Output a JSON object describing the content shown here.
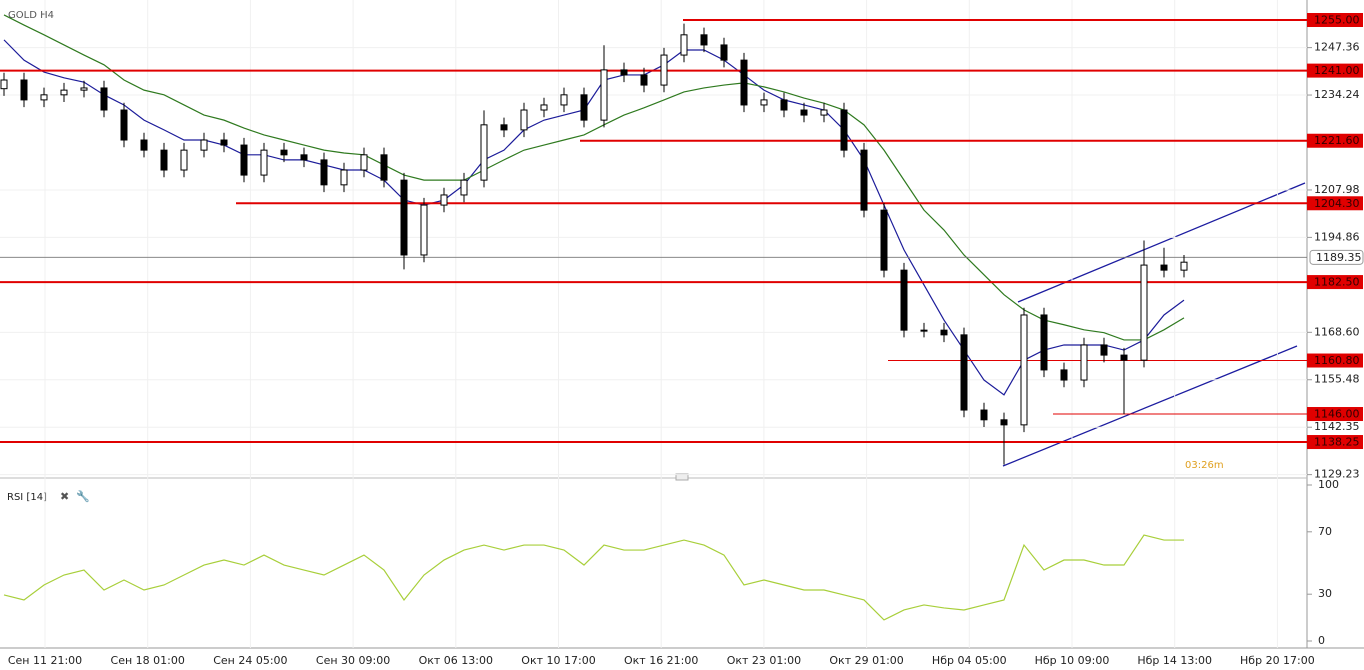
{
  "chart_data": [
    {
      "type": "candlestick",
      "title": "GOLD H4",
      "open": [
        1236,
        1238.4,
        1232.9,
        1234.3,
        1235.6,
        1236.2,
        1230.1,
        1221.8,
        1219,
        1213.5,
        1219,
        1221.8,
        1220.4,
        1212.1,
        1219,
        1217.7,
        1216.3,
        1209.4,
        1213.5,
        1217.7,
        1210.7,
        1190,
        1203.8,
        1206.6,
        1210.7,
        1226,
        1224.6,
        1230.1,
        1231.5,
        1234.3,
        1227.3,
        1241.2,
        1239.8,
        1237,
        1245.3,
        1250.9,
        1248.1,
        1243.9,
        1231.5,
        1232.9,
        1230.1,
        1228.7,
        1230.1,
        1219,
        1202.4,
        1185.8,
        1169.2,
        1169.2,
        1167.9,
        1147.1,
        1144.4,
        1143,
        1173.4,
        1158.2,
        1155.4,
        1165.1,
        1162.3,
        1160.9,
        1187.2,
        1185.8
      ],
      "high": [
        1240.4,
        1240.4,
        1236.3,
        1237.6,
        1238.2,
        1238.2,
        1232.1,
        1223.8,
        1221,
        1221,
        1223.8,
        1223.8,
        1222.4,
        1221,
        1221,
        1219.7,
        1218.3,
        1215.5,
        1219.7,
        1219.7,
        1212.7,
        1205.8,
        1208.6,
        1212.7,
        1230,
        1228,
        1232.1,
        1233.5,
        1236.3,
        1236.3,
        1248,
        1243.2,
        1241.8,
        1247.3,
        1254,
        1252.9,
        1250.1,
        1245.9,
        1234.9,
        1234.9,
        1232.1,
        1232.1,
        1232.1,
        1221,
        1204.4,
        1187.8,
        1171.2,
        1171.2,
        1169.9,
        1149.1,
        1146.4,
        1175.4,
        1175.4,
        1160.2,
        1167.1,
        1167.1,
        1164.3,
        1194,
        1192,
        1190
      ],
      "low": [
        1234,
        1230.9,
        1230.9,
        1232.3,
        1233.6,
        1228.1,
        1219.8,
        1217,
        1211.5,
        1211.5,
        1217,
        1218.4,
        1210.1,
        1210.1,
        1215.7,
        1214.3,
        1207.4,
        1207.4,
        1211.5,
        1208.7,
        1186,
        1188,
        1201.8,
        1204.6,
        1208.7,
        1222.6,
        1222.6,
        1228.1,
        1229.5,
        1225.3,
        1225.3,
        1237.8,
        1235,
        1235,
        1243.3,
        1246.1,
        1241.9,
        1229.5,
        1229.5,
        1228.1,
        1226.7,
        1226.7,
        1217,
        1200.4,
        1183.8,
        1167.2,
        1167.2,
        1165.9,
        1145.1,
        1142.4,
        1132,
        1141,
        1156.2,
        1153.4,
        1153.4,
        1160.3,
        1146,
        1158.9,
        1183.8,
        1183.8
      ],
      "close": [
        1238.4,
        1232.9,
        1234.3,
        1235.6,
        1236.2,
        1230.1,
        1221.8,
        1219,
        1213.5,
        1219,
        1221.8,
        1220.4,
        1212.1,
        1219,
        1217.7,
        1216.3,
        1209.4,
        1213.5,
        1217.7,
        1210.7,
        1190,
        1203.8,
        1206.6,
        1210.7,
        1226,
        1224.6,
        1230.1,
        1231.5,
        1234.3,
        1227.3,
        1241.2,
        1239.8,
        1237,
        1245.3,
        1250.9,
        1248.1,
        1243.9,
        1231.5,
        1232.9,
        1230.1,
        1228.7,
        1230.1,
        1219,
        1202.4,
        1185.8,
        1169.2,
        1169.2,
        1167.9,
        1147.1,
        1144.4,
        1143,
        1173.4,
        1158.2,
        1155.4,
        1165.1,
        1162.3,
        1160.9,
        1187.2,
        1185.8,
        1188
      ],
      "lines": [
        {
          "color": "#1c1c9a",
          "values": [
            1249.5,
            1243.9,
            1240.6,
            1239,
            1237.8,
            1234.3,
            1231.5,
            1227.3,
            1224.6,
            1221.8,
            1221.8,
            1220.4,
            1217.7,
            1217.7,
            1216.3,
            1216.3,
            1214.9,
            1213.5,
            1213.5,
            1210.7,
            1205.2,
            1203.8,
            1205.2,
            1209.4,
            1216.3,
            1219,
            1224.6,
            1227.3,
            1228.7,
            1230.1,
            1238.4,
            1239.8,
            1239.8,
            1242.6,
            1246.7,
            1246.7,
            1243.9,
            1239.8,
            1235.6,
            1232.9,
            1231.5,
            1230.1,
            1224.6,
            1216.3,
            1203.8,
            1191.4,
            1181.7,
            1172,
            1163.7,
            1155.4,
            1151.3,
            1160.9,
            1163.7,
            1165.1,
            1165.1,
            1165.1,
            1163.7,
            1166.5,
            1173.4,
            1177.5
          ]
        },
        {
          "color": "#2f7a1f",
          "values": [
            1256.4,
            1253.6,
            1250.9,
            1248.1,
            1245.3,
            1242.6,
            1238.4,
            1235.6,
            1234.3,
            1231.5,
            1228.7,
            1227.3,
            1225.1,
            1223.2,
            1221.8,
            1220.4,
            1219,
            1218.2,
            1217.7,
            1214.9,
            1212.1,
            1210.7,
            1210.7,
            1210.7,
            1213.5,
            1216.3,
            1219,
            1220.4,
            1221.8,
            1223.2,
            1226,
            1228.7,
            1230.7,
            1232.9,
            1235.1,
            1236.2,
            1237,
            1237.6,
            1236.5,
            1235.1,
            1233.4,
            1232,
            1230.1,
            1226,
            1219,
            1210.7,
            1202.4,
            1196.9,
            1190,
            1184.5,
            1179,
            1174.8,
            1172,
            1170.7,
            1169.3,
            1168.5,
            1166.5,
            1166.5,
            1169.3,
            1172.6
          ]
        }
      ],
      "levels": [
        {
          "value": 1255,
          "label": "1255.00"
        },
        {
          "value": 1241,
          "label": "1241.00"
        },
        {
          "value": 1221.6,
          "label": "1221.60"
        },
        {
          "value": 1204.3,
          "label": "1204.30"
        },
        {
          "value": 1182.5,
          "label": "1182.50"
        },
        {
          "value": 1160.8,
          "label": "1160.80"
        },
        {
          "value": 1146,
          "label": "1146.00"
        },
        {
          "value": 1138.25,
          "label": "1138.25"
        }
      ],
      "last_price": {
        "value": 1189.35,
        "label": "1189.35"
      },
      "timer": "03:26m",
      "ylim": [
        1128.3,
        1259.15
      ],
      "yticks": [
        1247.36,
        1234.24,
        1207.98,
        1194.86,
        {
          "value": 1168.6,
          "label": "1168.60"
        },
        1155.48,
        1142.35,
        1129.23
      ],
      "xlabels": [
        "Сен 11 21:00",
        "Сен 18 01:00",
        "Сен 24 05:00",
        "Сен 30 09:00",
        "Окт 06 13:00",
        "Окт 10 17:00",
        "Окт 16 21:00",
        "Окт 23 01:00",
        "Окт 29 01:00",
        "Нбр 04 05:00",
        "Нбр 10 09:00",
        "Нбр 14 13:00",
        "Нбр 20 17:00"
      ]
    },
    {
      "type": "line",
      "title": "RSI [14]",
      "color": "#a8cf3a",
      "values": [
        29.5,
        26.3,
        35.9,
        42.3,
        45.5,
        32.7,
        39.1,
        32.7,
        35.9,
        42.3,
        48.7,
        51.9,
        48.7,
        55.1,
        48.7,
        45.5,
        42.3,
        48.7,
        55.1,
        45.5,
        26.3,
        42.3,
        51.9,
        58.3,
        61.5,
        58.3,
        61.5,
        61.5,
        58.3,
        48.7,
        61.5,
        58.3,
        58.3,
        61.5,
        64.7,
        61.5,
        55.1,
        35.9,
        39.1,
        35.9,
        32.7,
        32.7,
        29.5,
        26.3,
        13.5,
        19.9,
        23.1,
        21.2,
        19.9,
        23.1,
        26.3,
        61.5,
        45.5,
        51.9,
        51.9,
        48.7,
        48.7,
        67.9,
        64.7,
        64.7
      ],
      "ylim": [
        0,
        100
      ],
      "yticks": [
        100,
        70,
        30,
        0
      ]
    }
  ]
}
